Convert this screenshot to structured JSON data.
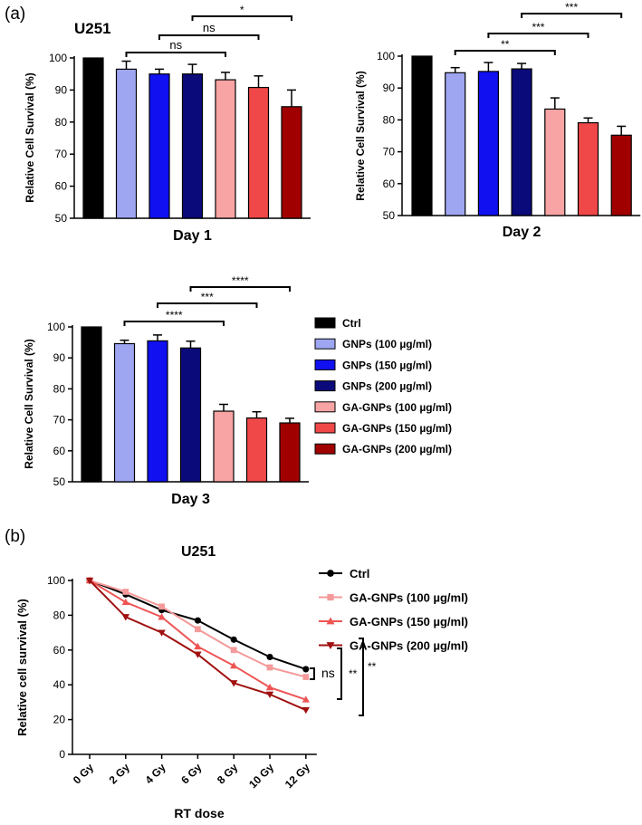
{
  "panel_labels": {
    "a": "(a)",
    "b": "(b)"
  },
  "colors": {
    "ctrl": "#000000",
    "gnp100": "#9ea6f2",
    "gnp150": "#1010f0",
    "gnp200": "#0a0a7a",
    "ga100": "#f8a4a4",
    "ga150": "#f04848",
    "ga200": "#a00000",
    "line_ctrl": "#000000",
    "line_ga100": "#f49a9a",
    "line_ga150": "#ee5454",
    "line_ga200": "#a01010"
  },
  "legend_a": [
    {
      "label": "Ctrl",
      "color_key": "ctrl"
    },
    {
      "label": "GNPs (100 µg/ml)",
      "color_key": "gnp100"
    },
    {
      "label": "GNPs (150 µg/ml)",
      "color_key": "gnp150"
    },
    {
      "label": "GNPs (200 µg/ml)",
      "color_key": "gnp200"
    },
    {
      "label": "GA-GNPs (100 µg/ml)",
      "color_key": "ga100"
    },
    {
      "label": "GA-GNPs (150 µg/ml)",
      "color_key": "ga150"
    },
    {
      "label": "GA-GNPs (200 µg/ml)",
      "color_key": "ga200"
    }
  ],
  "chart_data": [
    {
      "id": "day1",
      "type": "bar",
      "title": "U251",
      "xlabel": "Day 1",
      "ylabel": "Relative Cell Survival (%)",
      "ylim": [
        50,
        100
      ],
      "yticks": [
        50,
        60,
        70,
        80,
        90,
        100
      ],
      "categories": [
        "Ctrl",
        "GNPs (100 µg/ml)",
        "GNPs (150 µg/ml)",
        "GNPs (200 µg/ml)",
        "GA-GNPs (100 µg/ml)",
        "GA-GNPs (150 µg/ml)",
        "GA-GNPs (200 µg/ml)"
      ],
      "values": [
        100,
        96.5,
        95,
        95,
        93.2,
        90.8,
        84.8
      ],
      "errors": [
        0,
        2.5,
        1.5,
        3.0,
        2.3,
        3.6,
        5.2
      ],
      "significance": [
        {
          "from": 1,
          "to": 4,
          "label": "ns"
        },
        {
          "from": 2,
          "to": 5,
          "label": "ns"
        },
        {
          "from": 3,
          "to": 6,
          "label": "*"
        }
      ]
    },
    {
      "id": "day2",
      "type": "bar",
      "title": "",
      "xlabel": "Day 2",
      "ylabel": "Relative Cell Survival (%)",
      "ylim": [
        50,
        100
      ],
      "yticks": [
        50,
        60,
        70,
        80,
        90,
        100
      ],
      "categories": [
        "Ctrl",
        "GNPs (100 µg/ml)",
        "GNPs (150 µg/ml)",
        "GNPs (200 µg/ml)",
        "GA-GNPs (100 µg/ml)",
        "GA-GNPs (150 µg/ml)",
        "GA-GNPs (200 µg/ml)"
      ],
      "values": [
        100,
        94.8,
        95.2,
        96,
        83.4,
        79.1,
        75.2
      ],
      "errors": [
        0,
        1.6,
        2.8,
        1.7,
        3.5,
        1.5,
        2.8
      ],
      "significance": [
        {
          "from": 1,
          "to": 4,
          "label": "**"
        },
        {
          "from": 2,
          "to": 5,
          "label": "***"
        },
        {
          "from": 3,
          "to": 6,
          "label": "***"
        }
      ]
    },
    {
      "id": "day3",
      "type": "bar",
      "title": "",
      "xlabel": "Day 3",
      "ylabel": "Relative Cell Survival (%)",
      "ylim": [
        50,
        100
      ],
      "yticks": [
        50,
        60,
        70,
        80,
        90,
        100
      ],
      "categories": [
        "Ctrl",
        "GNPs (100 µg/ml)",
        "GNPs (150 µg/ml)",
        "GNPs (200 µg/ml)",
        "GA-GNPs (100 µg/ml)",
        "GA-GNPs (150 µg/ml)",
        "GA-GNPs (200 µg/ml)"
      ],
      "values": [
        100,
        94.6,
        95.5,
        93.2,
        72.8,
        70.6,
        69.0
      ],
      "errors": [
        0,
        1.1,
        1.9,
        2.2,
        2.2,
        2.0,
        1.5
      ],
      "significance": [
        {
          "from": 1,
          "to": 4,
          "label": "****"
        },
        {
          "from": 2,
          "to": 5,
          "label": "***"
        },
        {
          "from": 3,
          "to": 6,
          "label": "****"
        }
      ]
    },
    {
      "id": "rt",
      "type": "line",
      "title": "U251",
      "xlabel": "RT dose",
      "ylabel": "Relative cell survival (%)",
      "ylim": [
        0,
        100
      ],
      "yticks": [
        0,
        20,
        40,
        60,
        80,
        100
      ],
      "categories": [
        "0 Gy",
        "2 Gy",
        "4 Gy",
        "6 Gy",
        "8 Gy",
        "10 Gy",
        "12 Gy"
      ],
      "series": [
        {
          "name": "Ctrl",
          "marker": "circle",
          "color_key": "line_ctrl",
          "values": [
            100,
            92,
            83,
            77,
            66,
            56,
            49
          ]
        },
        {
          "name": "GA-GNPs (100 µg/ml)",
          "marker": "square",
          "color_key": "line_ga100",
          "values": [
            100,
            93.5,
            85,
            72,
            60,
            50,
            44.5
          ]
        },
        {
          "name": "GA-GNPs (150 µg/ml)",
          "marker": "triangle-up",
          "color_key": "line_ga150",
          "values": [
            100,
            87.5,
            79,
            62,
            51,
            38.5,
            31.5
          ]
        },
        {
          "name": "GA-GNPs (200 µg/ml)",
          "marker": "triangle-down",
          "color_key": "line_ga200",
          "values": [
            100,
            79,
            70,
            57.5,
            41,
            34.5,
            25.5
          ]
        }
      ],
      "significance": [
        {
          "between": [
            "Ctrl",
            "GA-GNPs (100 µg/ml)"
          ],
          "label": "ns"
        },
        {
          "between": [
            "Ctrl",
            "GA-GNPs (150 µg/ml)"
          ],
          "label": "**"
        },
        {
          "between": [
            "Ctrl",
            "GA-GNPs (200 µg/ml)"
          ],
          "label": "**"
        }
      ]
    }
  ]
}
